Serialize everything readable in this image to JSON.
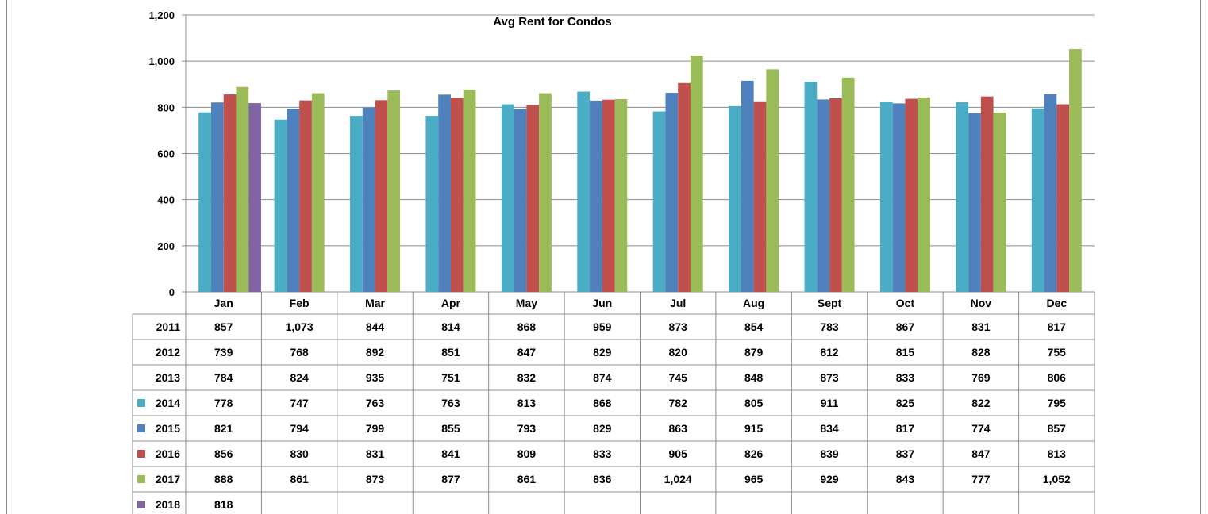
{
  "chart_data": {
    "type": "bar",
    "title": "Avg Rent for Condos",
    "categories": [
      "Jan",
      "Feb",
      "Mar",
      "Apr",
      "May",
      "Jun",
      "Jul",
      "Aug",
      "Sept",
      "Oct",
      "Nov",
      "Dec"
    ],
    "ylim": [
      0,
      1200
    ],
    "yticks": [
      "0",
      "200",
      "400",
      "600",
      "800",
      "1,000",
      "1,200"
    ],
    "ytick_values": [
      0,
      200,
      400,
      600,
      800,
      1000,
      1200
    ],
    "grid": true,
    "legend": "data-table",
    "series": [
      {
        "name": "2011",
        "plotted": false,
        "values": [
          857,
          1073,
          844,
          814,
          868,
          959,
          873,
          854,
          783,
          867,
          831,
          817
        ],
        "labels": [
          "857",
          "1,073",
          "844",
          "814",
          "868",
          "959",
          "873",
          "854",
          "783",
          "867",
          "831",
          "817"
        ]
      },
      {
        "name": "2012",
        "plotted": false,
        "values": [
          739,
          768,
          892,
          851,
          847,
          829,
          820,
          879,
          812,
          815,
          828,
          755
        ],
        "labels": [
          "739",
          "768",
          "892",
          "851",
          "847",
          "829",
          "820",
          "879",
          "812",
          "815",
          "828",
          "755"
        ]
      },
      {
        "name": "2013",
        "plotted": false,
        "values": [
          784,
          824,
          935,
          751,
          832,
          874,
          745,
          848,
          873,
          833,
          769,
          806
        ],
        "labels": [
          "784",
          "824",
          "935",
          "751",
          "832",
          "874",
          "745",
          "848",
          "873",
          "833",
          "769",
          "806"
        ]
      },
      {
        "name": "2014",
        "plotted": true,
        "color": "#4bacc6",
        "values": [
          778,
          747,
          763,
          763,
          813,
          868,
          782,
          805,
          911,
          825,
          822,
          795
        ],
        "labels": [
          "778",
          "747",
          "763",
          "763",
          "813",
          "868",
          "782",
          "805",
          "911",
          "825",
          "822",
          "795"
        ]
      },
      {
        "name": "2015",
        "plotted": true,
        "color": "#4f81bd",
        "values": [
          821,
          794,
          799,
          855,
          793,
          829,
          863,
          915,
          834,
          817,
          774,
          857
        ],
        "labels": [
          "821",
          "794",
          "799",
          "855",
          "793",
          "829",
          "863",
          "915",
          "834",
          "817",
          "774",
          "857"
        ]
      },
      {
        "name": "2016",
        "plotted": true,
        "color": "#c0504d",
        "values": [
          856,
          830,
          831,
          841,
          809,
          833,
          905,
          826,
          839,
          837,
          847,
          813
        ],
        "labels": [
          "856",
          "830",
          "831",
          "841",
          "809",
          "833",
          "905",
          "826",
          "839",
          "837",
          "847",
          "813"
        ]
      },
      {
        "name": "2017",
        "plotted": true,
        "color": "#9bbb59",
        "values": [
          888,
          861,
          873,
          877,
          861,
          836,
          1024,
          965,
          929,
          843,
          777,
          1052
        ],
        "labels": [
          "888",
          "861",
          "873",
          "877",
          "861",
          "836",
          "1,024",
          "965",
          "929",
          "843",
          "777",
          "1,052"
        ]
      },
      {
        "name": "2018",
        "plotted": true,
        "color": "#8064a2",
        "values": [
          818,
          null,
          null,
          null,
          null,
          null,
          null,
          null,
          null,
          null,
          null,
          null
        ],
        "labels": [
          "818",
          "",
          "",
          "",
          "",
          "",
          "",
          "",
          "",
          "",
          "",
          ""
        ]
      }
    ]
  }
}
